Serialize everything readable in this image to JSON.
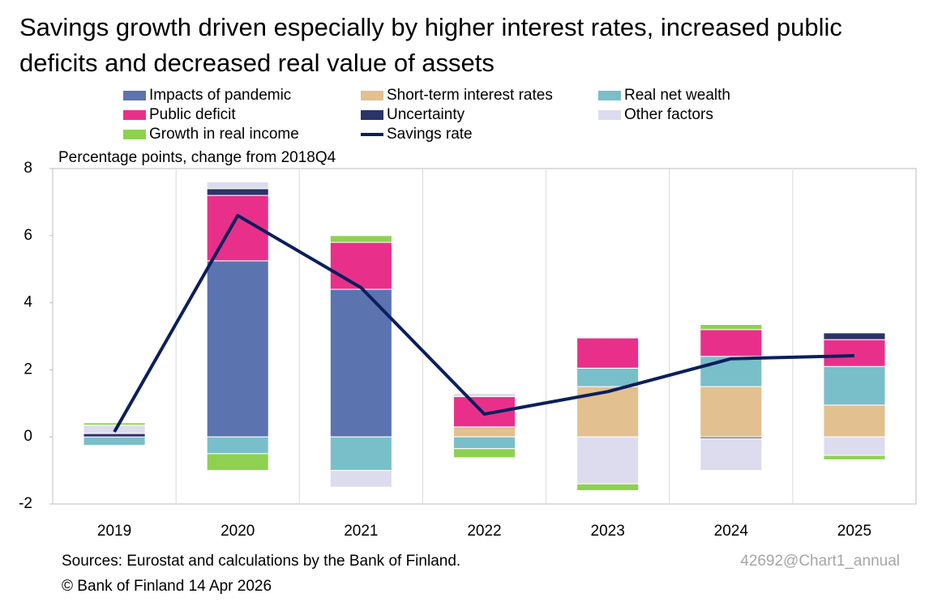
{
  "chart_data": {
    "type": "stacked_bar_line",
    "title": "Savings growth driven especially by higher interest rates, increased public deficits and decreased real value of assets",
    "subtitle": "Percentage points, change from 2018Q4",
    "source": "Sources: Eurostat and calculations by the Bank of Finland.",
    "copyright": "© Bank of Finland 14 Apr 2026",
    "chart_id": "42692@Chart1_annual",
    "categories": [
      "2019",
      "2020",
      "2021",
      "2022",
      "2023",
      "2024",
      "2025"
    ],
    "ylim": [
      -2,
      8
    ],
    "yticks": [
      -2,
      0,
      2,
      4,
      6,
      8
    ],
    "series": [
      {
        "name": "Impacts of pandemic",
        "color": "#5b74b0",
        "values": [
          0,
          5.25,
          4.4,
          0,
          0,
          0,
          0
        ]
      },
      {
        "name": "Short-term interest rates",
        "color": "#e2c08f",
        "values": [
          0,
          0,
          0,
          0.3,
          1.5,
          1.5,
          0.95
        ]
      },
      {
        "name": "Real net wealth",
        "color": "#79bfc9",
        "values": [
          -0.25,
          -0.5,
          -1.0,
          -0.35,
          0.55,
          0.9,
          1.15
        ]
      },
      {
        "name": "Public deficit",
        "color": "#e8308a",
        "values": [
          0,
          1.95,
          1.4,
          0.9,
          0.9,
          0.8,
          0.8
        ]
      },
      {
        "name": "Uncertainty",
        "color": "#2b3467",
        "values": [
          0.1,
          0.2,
          0,
          0,
          0,
          -0.05,
          0.2
        ]
      },
      {
        "name": "Other factors",
        "color": "#dcdcee",
        "values": [
          0.25,
          0.2,
          -0.5,
          0.1,
          -1.4,
          -0.95,
          -0.55
        ]
      },
      {
        "name": "Growth in real income",
        "color": "#8ed150",
        "values": [
          0.07,
          -0.5,
          0.2,
          -0.27,
          -0.2,
          0.15,
          -0.13
        ]
      },
      {
        "name": "Savings rate",
        "type": "line",
        "color": "#0a1f5c",
        "values": [
          0.15,
          6.6,
          4.45,
          0.68,
          1.35,
          2.33,
          2.42
        ]
      }
    ]
  }
}
